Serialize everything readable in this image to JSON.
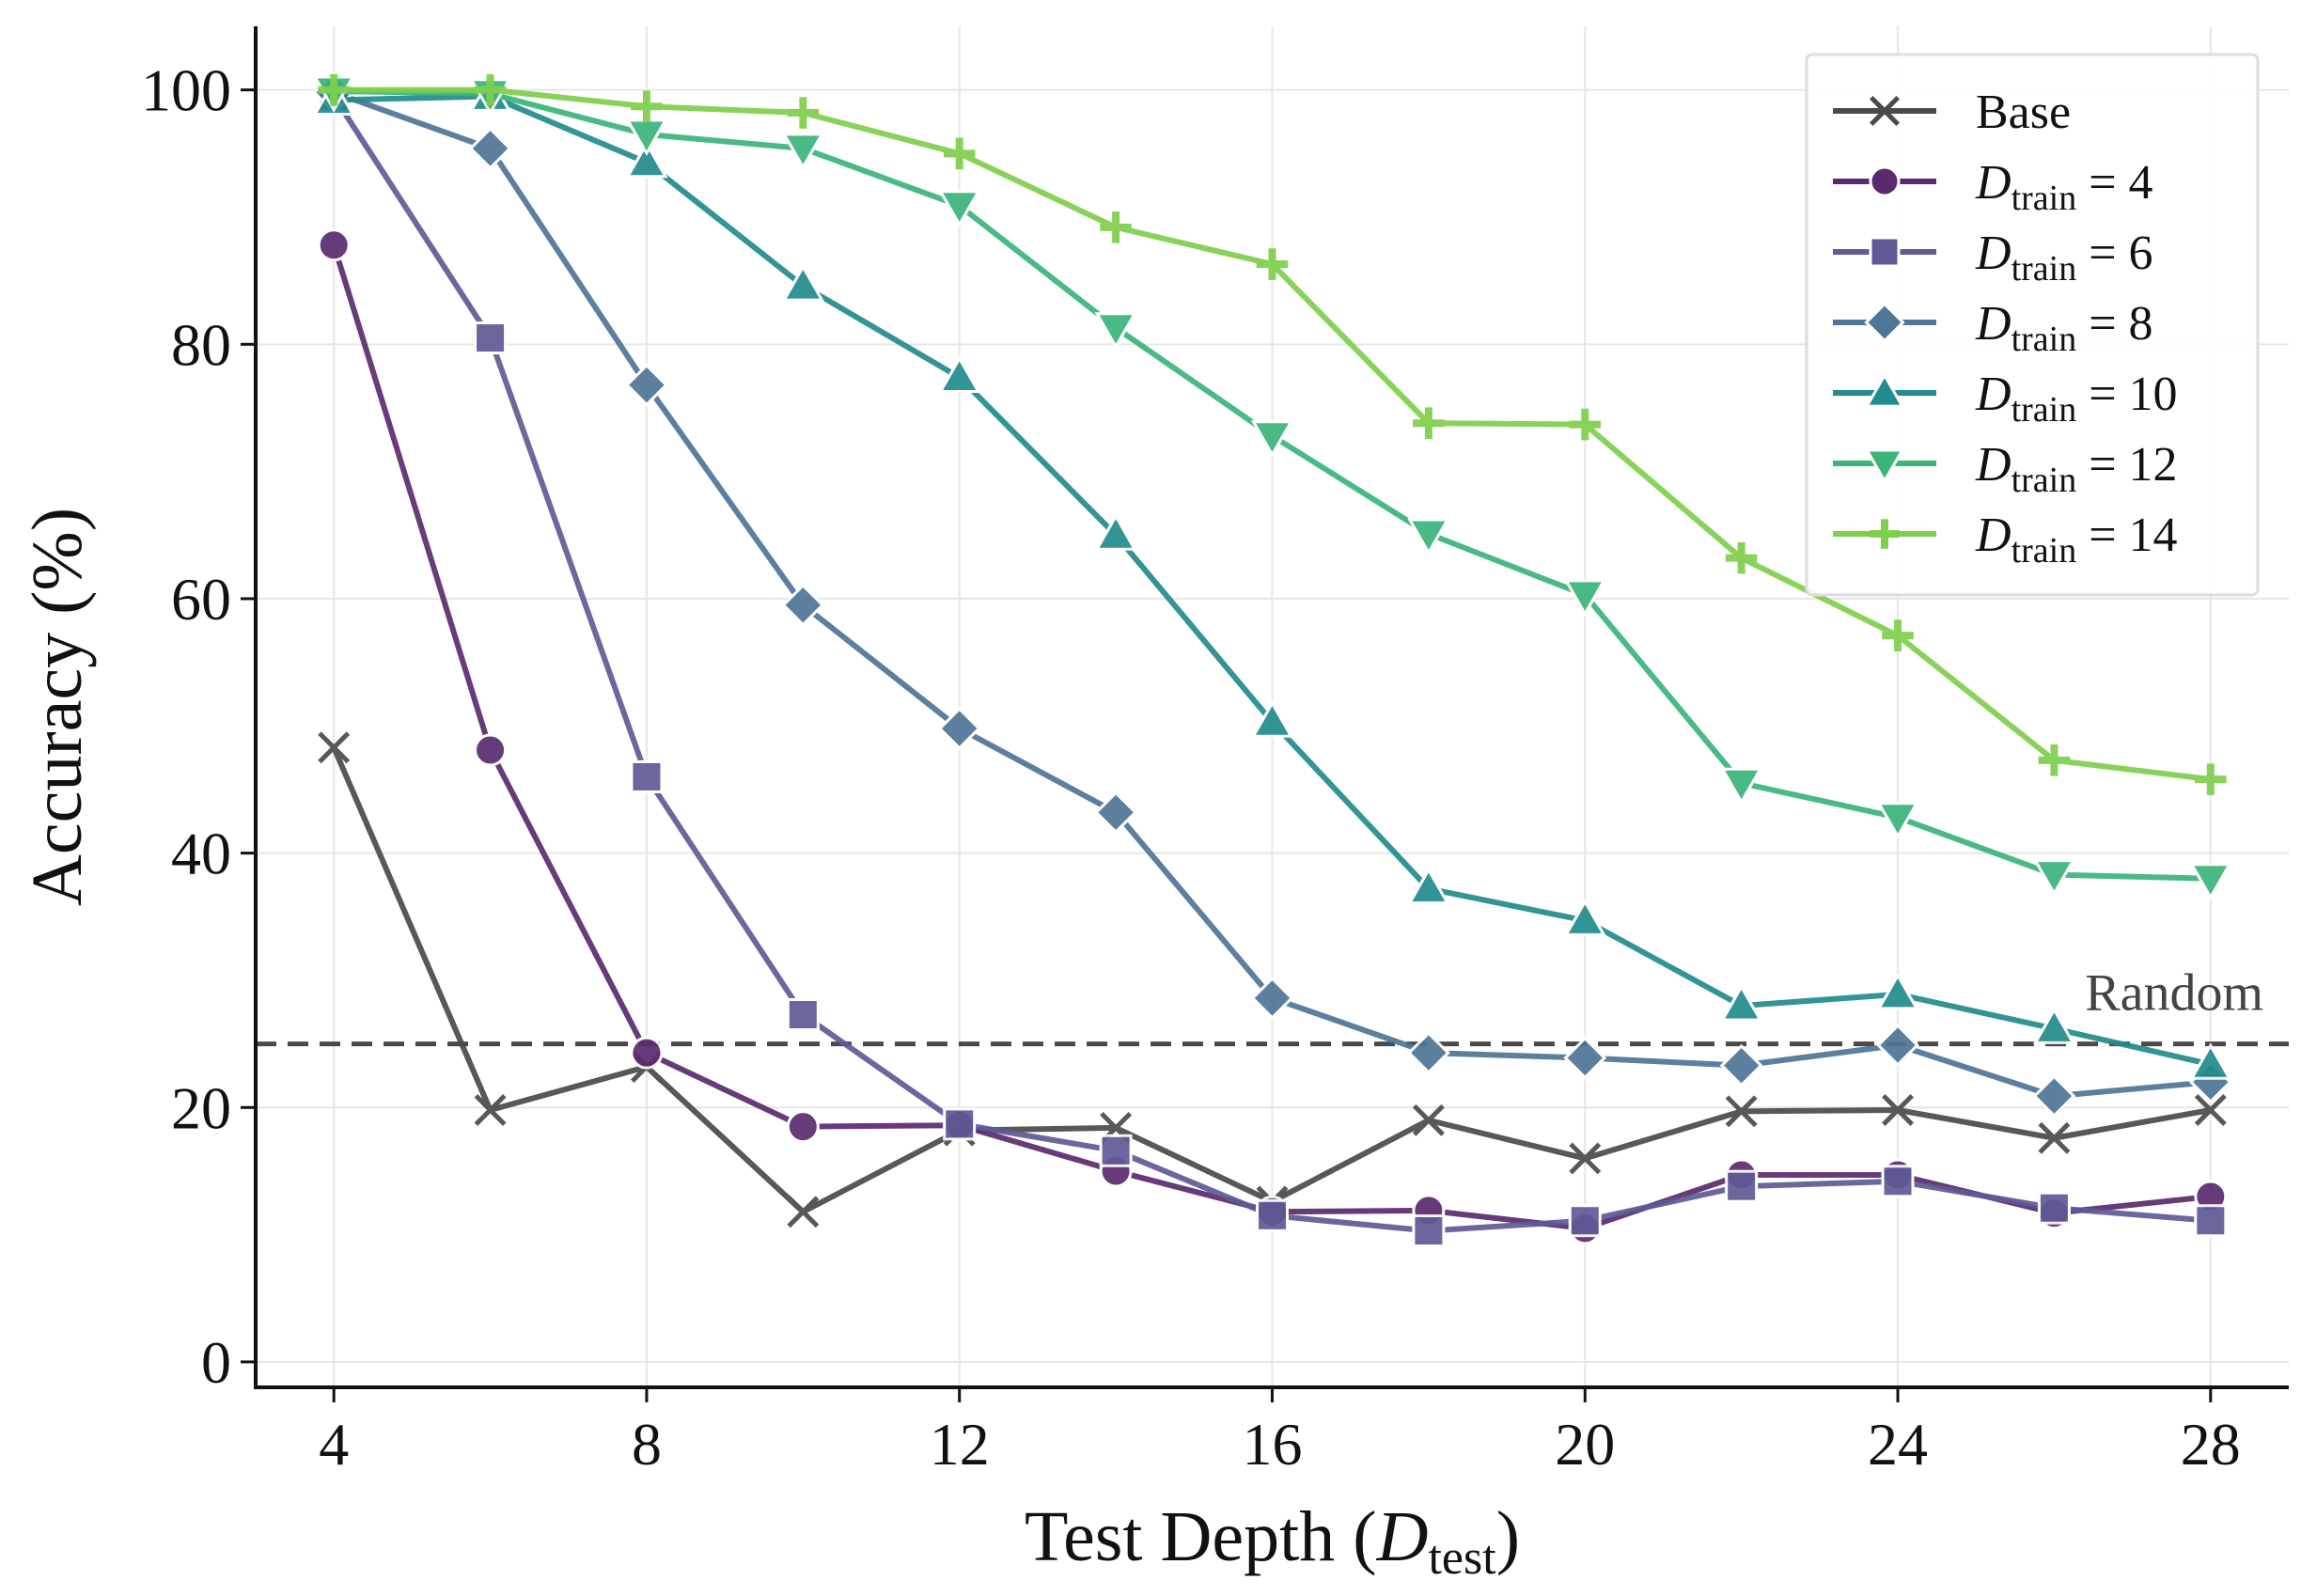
{
  "chart_data": {
    "type": "line",
    "title": "",
    "xlabel": "Test Depth (D_test)",
    "xlabel_parts": {
      "text": "Test Depth (",
      "var": "D",
      "sub": "test",
      "close": ")"
    },
    "ylabel": "Accuracy (%)",
    "x": [
      4,
      6,
      8,
      10,
      12,
      14,
      16,
      18,
      20,
      22,
      24,
      26,
      28
    ],
    "xticks": [
      4,
      8,
      12,
      16,
      20,
      24,
      28
    ],
    "yticks": [
      0,
      20,
      40,
      60,
      80,
      100
    ],
    "xlim": [
      3,
      29
    ],
    "ylim": [
      -2,
      105
    ],
    "grid": true,
    "legend_position": "top-right",
    "reference_line": {
      "label": "Random",
      "y": 25,
      "style": "dashed",
      "color": "#4a4a4a"
    },
    "series": [
      {
        "name": "Base",
        "legend": {
          "var": "",
          "sub": "",
          "value": ""
        },
        "marker": "x",
        "color": "#4a4a4a",
        "values": [
          48.3,
          19.8,
          23.2,
          11.8,
          18.2,
          18.4,
          12.6,
          19.0,
          16.0,
          19.7,
          19.8,
          17.6,
          19.8
        ]
      },
      {
        "name": "D_train = 4",
        "legend": {
          "var": "D",
          "sub": "train",
          "value": "= 4"
        },
        "marker": "circle",
        "color": "#5b2a6e",
        "values": [
          87.8,
          48.1,
          24.3,
          18.5,
          18.6,
          15.0,
          11.8,
          11.9,
          10.5,
          14.7,
          14.7,
          11.7,
          13.0
        ]
      },
      {
        "name": "D_train = 6",
        "legend": {
          "var": "D",
          "sub": "train",
          "value": "= 6"
        },
        "marker": "square",
        "color": "#5f5a96",
        "values": [
          99.5,
          80.5,
          46.0,
          27.3,
          18.7,
          16.6,
          11.5,
          10.3,
          11.1,
          13.8,
          14.2,
          12.1,
          11.1
        ]
      },
      {
        "name": "D_train = 8",
        "legend": {
          "var": "D",
          "sub": "train",
          "value": "= 8"
        },
        "marker": "diamond",
        "color": "#4f7598",
        "values": [
          99.8,
          95.4,
          76.8,
          59.5,
          49.8,
          43.2,
          28.6,
          24.3,
          23.9,
          23.3,
          24.9,
          20.9,
          22.0
        ]
      },
      {
        "name": "D_train = 10",
        "legend": {
          "var": "D",
          "sub": "train",
          "value": "= 10"
        },
        "marker": "triangle-up",
        "color": "#218c8d",
        "values": [
          99.2,
          99.5,
          94.3,
          84.6,
          77.4,
          65.0,
          50.3,
          37.2,
          34.7,
          28.0,
          28.9,
          26.2,
          23.4
        ]
      },
      {
        "name": "D_train = 12",
        "legend": {
          "var": "D",
          "sub": "train",
          "value": "= 12"
        },
        "marker": "triangle-down",
        "color": "#3bb57a",
        "values": [
          99.9,
          99.7,
          96.5,
          95.4,
          90.9,
          81.3,
          72.8,
          65.1,
          60.3,
          45.5,
          42.8,
          38.3,
          38.0
        ]
      },
      {
        "name": "D_train = 14",
        "legend": {
          "var": "D",
          "sub": "train",
          "value": "= 14"
        },
        "marker": "plus",
        "color": "#7fcf4c",
        "values": [
          100.0,
          100.0,
          98.7,
          98.2,
          95.0,
          89.2,
          86.3,
          73.8,
          73.7,
          63.2,
          57.1,
          47.3,
          45.8
        ]
      }
    ]
  }
}
